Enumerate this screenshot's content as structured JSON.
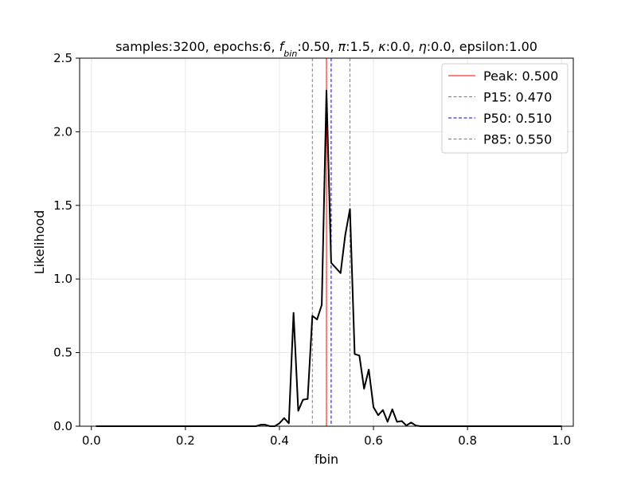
{
  "chart_data": {
    "type": "line",
    "title_parts": [
      {
        "text": "samples:3200, epochs:6, ",
        "sub": false
      },
      {
        "text": "f",
        "italic": true
      },
      {
        "text": "bin",
        "sub": true,
        "italic": true
      },
      {
        "text": ":0.50, ",
        "sub": false
      },
      {
        "text": "π",
        "italic": true
      },
      {
        "text": ":1.5, ",
        "sub": false
      },
      {
        "text": "κ",
        "italic": true
      },
      {
        "text": ":0.0, ",
        "sub": false
      },
      {
        "text": "η",
        "italic": true
      },
      {
        "text": ":0.0, epsilon:1.00",
        "sub": false
      }
    ],
    "xlabel": "fbin",
    "ylabel": "Likelihood",
    "xlim": [
      -0.025,
      1.025
    ],
    "ylim": [
      0,
      2.5
    ],
    "xticks": [
      0.0,
      0.2,
      0.4,
      0.6,
      0.8,
      1.0
    ],
    "xtick_labels": [
      "0.0",
      "0.2",
      "0.4",
      "0.6",
      "0.8",
      "1.0"
    ],
    "yticks": [
      0.0,
      0.5,
      1.0,
      1.5,
      2.0,
      2.5
    ],
    "ytick_labels": [
      "0.0",
      "0.5",
      "1.0",
      "1.5",
      "2.0",
      "2.5"
    ],
    "grid": true,
    "legend_position": "top-right",
    "series": [
      {
        "color": "#000000",
        "x": [
          0.01,
          0.35,
          0.36,
          0.37,
          0.38,
          0.39,
          0.4,
          0.41,
          0.42,
          0.43,
          0.44,
          0.45,
          0.46,
          0.47,
          0.48,
          0.49,
          0.5,
          0.51,
          0.52,
          0.53,
          0.54,
          0.55,
          0.56,
          0.57,
          0.58,
          0.59,
          0.6,
          0.61,
          0.62,
          0.63,
          0.64,
          0.65,
          0.66,
          0.67,
          0.68,
          0.69,
          0.7,
          1.0
        ],
        "y": [
          0.0,
          0.0,
          0.01,
          0.01,
          0.0,
          0.0,
          0.02,
          0.055,
          0.02,
          0.77,
          0.105,
          0.18,
          0.185,
          0.75,
          0.725,
          0.825,
          2.28,
          1.11,
          1.075,
          1.04,
          1.3,
          1.475,
          0.49,
          0.48,
          0.255,
          0.385,
          0.13,
          0.075,
          0.11,
          0.03,
          0.115,
          0.03,
          0.035,
          0.005,
          0.025,
          0.005,
          0.0,
          0.0
        ]
      }
    ],
    "vlines": [
      {
        "x": 0.5,
        "color": "#ff0000",
        "dash": false,
        "label": "Peak: 0.500"
      },
      {
        "x": 0.47,
        "color": "#808080",
        "dash": true,
        "label": "P15: 0.470"
      },
      {
        "x": 0.51,
        "color": "#0000ff",
        "dash": true,
        "label": "P50: 0.510"
      },
      {
        "x": 0.55,
        "color": "#808080",
        "dash": true,
        "label": "P85: 0.550"
      }
    ]
  }
}
